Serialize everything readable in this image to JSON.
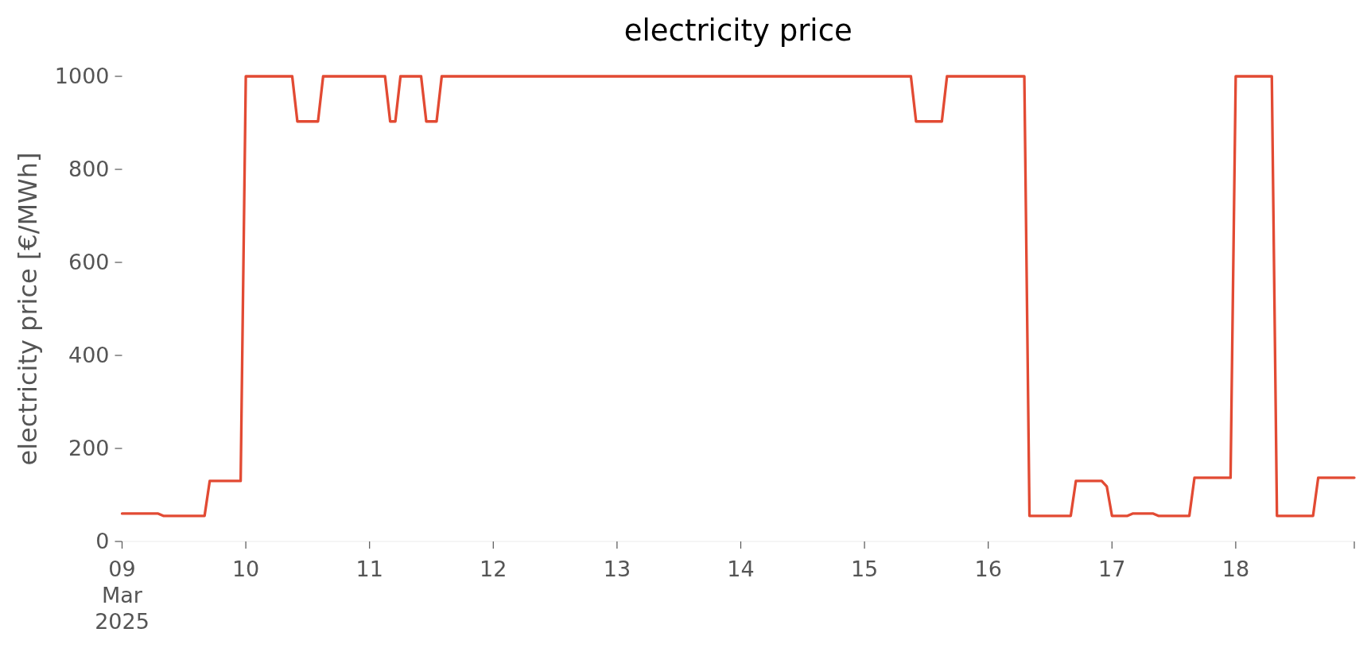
{
  "chart_data": {
    "type": "line",
    "title": "electricity price",
    "ylabel": "electricity price [€/MWh]",
    "xlim": [
      "2025-03-09T00:00",
      "2025-03-18T23:00"
    ],
    "xticks": [
      {
        "value": "2025-03-09",
        "label": "09\nMar\n2025"
      },
      {
        "value": "2025-03-10",
        "label": "10"
      },
      {
        "value": "2025-03-11",
        "label": "11"
      },
      {
        "value": "2025-03-12",
        "label": "12"
      },
      {
        "value": "2025-03-13",
        "label": "13"
      },
      {
        "value": "2025-03-14",
        "label": "14"
      },
      {
        "value": "2025-03-15",
        "label": "15"
      },
      {
        "value": "2025-03-16",
        "label": "16"
      },
      {
        "value": "2025-03-17",
        "label": "17"
      },
      {
        "value": "2025-03-18",
        "label": "18"
      },
      {
        "value": "2025-03-18T23:00",
        "label": null
      }
    ],
    "ylim": [
      0,
      1000
    ],
    "yticks": [
      0,
      200,
      400,
      600,
      800,
      1000
    ],
    "grid": false,
    "line_style": "solid",
    "series": [
      {
        "color": "#e24a33",
        "x": [
          "2025-03-09T00:00",
          "2025-03-09T07:00",
          "2025-03-09T08:00",
          "2025-03-09T16:00",
          "2025-03-09T17:00",
          "2025-03-09T23:00",
          "2025-03-10T00:00",
          "2025-03-10T09:00",
          "2025-03-10T10:00",
          "2025-03-10T14:00",
          "2025-03-10T15:00",
          "2025-03-11T03:00",
          "2025-03-11T04:00",
          "2025-03-11T05:00",
          "2025-03-11T06:00",
          "2025-03-11T10:00",
          "2025-03-11T11:00",
          "2025-03-11T13:00",
          "2025-03-11T14:00",
          "2025-03-15T09:00",
          "2025-03-15T10:00",
          "2025-03-15T15:00",
          "2025-03-15T16:00",
          "2025-03-16T07:00",
          "2025-03-16T08:00",
          "2025-03-16T16:00",
          "2025-03-16T17:00",
          "2025-03-16T22:00",
          "2025-03-16T23:00",
          "2025-03-17T00:00",
          "2025-03-17T03:00",
          "2025-03-17T04:00",
          "2025-03-17T08:00",
          "2025-03-17T09:00",
          "2025-03-17T15:00",
          "2025-03-17T16:00",
          "2025-03-17T23:00",
          "2025-03-18T00:00",
          "2025-03-18T07:00",
          "2025-03-18T08:00",
          "2025-03-18T15:00",
          "2025-03-18T16:00",
          "2025-03-18T23:00"
        ],
        "values": [
          60,
          60,
          55,
          55,
          130,
          130,
          1000,
          1000,
          903,
          903,
          1000,
          1000,
          903,
          903,
          1000,
          1000,
          903,
          903,
          1000,
          1000,
          903,
          903,
          1000,
          1000,
          55,
          55,
          130,
          130,
          118,
          55,
          55,
          60,
          60,
          55,
          55,
          137,
          137,
          1000,
          1000,
          55,
          55,
          137,
          137
        ]
      }
    ]
  }
}
